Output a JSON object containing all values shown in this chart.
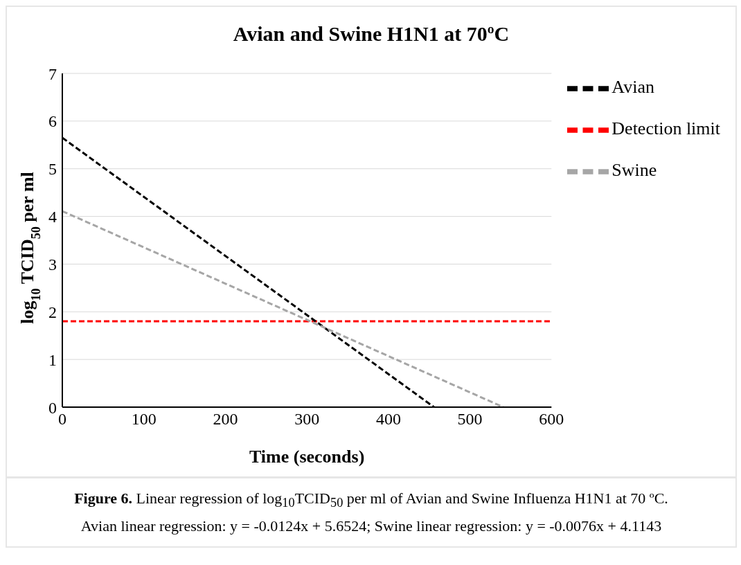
{
  "chart_data": {
    "type": "line",
    "title": "Avian and Swine H1N1 at 70ºC",
    "xlabel": "Time (seconds)",
    "ylabel": "log$_{10}$ TCID$_{50}$  per ml",
    "series": [
      {
        "name": "Detection limit",
        "color": "#ff0000",
        "x": [
          0,
          600
        ],
        "values": [
          1.8,
          1.8
        ],
        "line_style": "dashed"
      },
      {
        "name": "Avian",
        "color": "#000000",
        "x": [
          0,
          456
        ],
        "values": [
          5.65,
          0
        ],
        "line_style": "dashed"
      },
      {
        "name": "Swine",
        "color": "#a6a6a6",
        "x": [
          0,
          541
        ],
        "values": [
          4.11,
          0
        ],
        "line_style": "dashed"
      }
    ],
    "xlim": [
      0,
      600
    ],
    "xticks": [
      0,
      100,
      200,
      300,
      400,
      500,
      600
    ],
    "ylim": [
      0,
      7
    ],
    "yticks": [
      0,
      1,
      2,
      3,
      4,
      5,
      6,
      7
    ],
    "grid": "y",
    "legend": "top right",
    "marker": "none",
    "annotations": [
      "Figure 6. Linear regression of log$_{10}$TCID$_{50}$ per ml of Avian and Swine Influenza H1N1 at 70 ºC.",
      "Avian linear regression: y = -0.0124x + 5.6524; Swine linear regression: y = -0.0076x + 4.1143"
    ]
  }
}
